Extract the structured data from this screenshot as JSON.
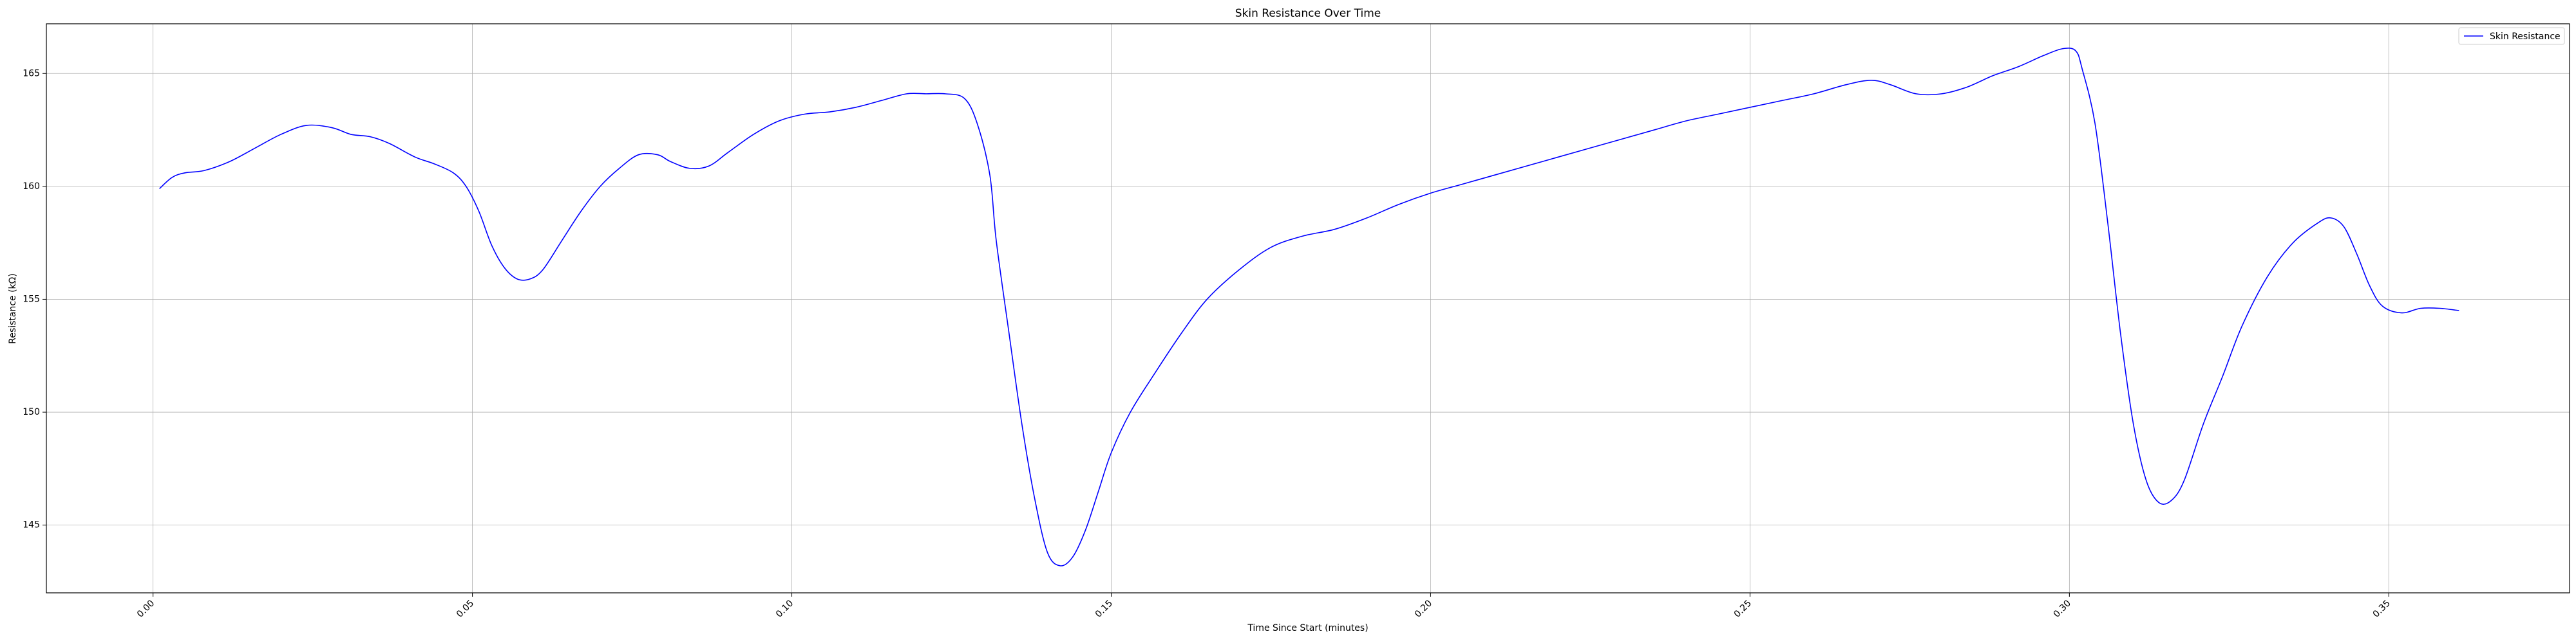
{
  "chart_data": {
    "type": "line",
    "title": "Skin Resistance Over Time",
    "xlabel": "Time Since Start (minutes)",
    "ylabel": "Resistance (kΩ)",
    "xlim": [
      -0.0167,
      0.3783
    ],
    "ylim": [
      142.0,
      167.2
    ],
    "grid": true,
    "legend_position": "top-right",
    "x_ticks": [
      {
        "value": 0.0,
        "label": "0.00"
      },
      {
        "value": 0.05,
        "label": "0.05"
      },
      {
        "value": 0.1,
        "label": "0.10"
      },
      {
        "value": 0.15,
        "label": "0.15"
      },
      {
        "value": 0.2,
        "label": "0.20"
      },
      {
        "value": 0.25,
        "label": "0.25"
      },
      {
        "value": 0.3,
        "label": "0.30"
      },
      {
        "value": 0.35,
        "label": "0.35"
      }
    ],
    "y_ticks": [
      {
        "value": 145,
        "label": "145"
      },
      {
        "value": 150,
        "label": "150"
      },
      {
        "value": 155,
        "label": "155"
      },
      {
        "value": 160,
        "label": "160"
      },
      {
        "value": 165,
        "label": "165"
      }
    ],
    "series": [
      {
        "name": "Skin Resistance",
        "color": "#0000ff",
        "x": [
          0.001,
          0.003,
          0.005,
          0.008,
          0.012,
          0.016,
          0.02,
          0.024,
          0.028,
          0.031,
          0.034,
          0.037,
          0.041,
          0.044,
          0.047,
          0.049,
          0.051,
          0.053,
          0.055,
          0.057,
          0.059,
          0.061,
          0.064,
          0.067,
          0.07,
          0.073,
          0.076,
          0.079,
          0.081,
          0.084,
          0.087,
          0.09,
          0.094,
          0.098,
          0.102,
          0.106,
          0.11,
          0.114,
          0.118,
          0.121,
          0.124,
          0.127,
          0.129,
          0.131,
          0.132,
          0.134,
          0.136,
          0.138,
          0.14,
          0.142,
          0.144,
          0.146,
          0.148,
          0.15,
          0.153,
          0.157,
          0.161,
          0.165,
          0.17,
          0.175,
          0.18,
          0.185,
          0.19,
          0.195,
          0.2,
          0.205,
          0.21,
          0.215,
          0.22,
          0.225,
          0.23,
          0.235,
          0.24,
          0.245,
          0.25,
          0.255,
          0.26,
          0.265,
          0.269,
          0.272,
          0.276,
          0.28,
          0.284,
          0.288,
          0.292,
          0.296,
          0.299,
          0.301,
          0.302,
          0.304,
          0.306,
          0.308,
          0.31,
          0.312,
          0.314,
          0.316,
          0.318,
          0.321,
          0.324,
          0.327,
          0.331,
          0.335,
          0.339,
          0.341,
          0.343,
          0.345,
          0.347,
          0.349,
          0.352,
          0.355,
          0.358,
          0.361
        ],
        "y": [
          159.9,
          160.4,
          160.6,
          160.7,
          161.1,
          161.7,
          162.3,
          162.7,
          162.6,
          162.3,
          162.2,
          161.9,
          161.3,
          161.0,
          160.6,
          160.0,
          158.9,
          157.4,
          156.4,
          155.9,
          155.9,
          156.3,
          157.6,
          158.9,
          160.0,
          160.8,
          161.4,
          161.4,
          161.1,
          160.8,
          160.9,
          161.5,
          162.3,
          162.9,
          163.2,
          163.3,
          163.5,
          163.8,
          164.1,
          164.1,
          164.1,
          163.9,
          162.8,
          160.5,
          157.6,
          153.5,
          149.5,
          146.2,
          143.8,
          143.2,
          143.6,
          144.8,
          146.5,
          148.2,
          150.0,
          151.8,
          153.5,
          155.0,
          156.3,
          157.3,
          157.8,
          158.1,
          158.6,
          159.2,
          159.7,
          160.1,
          160.5,
          160.9,
          161.3,
          161.7,
          162.1,
          162.5,
          162.9,
          163.2,
          163.5,
          163.8,
          164.1,
          164.5,
          164.7,
          164.5,
          164.1,
          164.1,
          164.4,
          164.9,
          165.3,
          165.8,
          166.1,
          166.0,
          165.2,
          162.8,
          158.4,
          153.5,
          149.5,
          147.0,
          146.0,
          146.1,
          147.0,
          149.5,
          151.6,
          153.8,
          156.0,
          157.5,
          158.4,
          158.6,
          158.2,
          157.0,
          155.6,
          154.7,
          154.4,
          154.6,
          154.6,
          154.5
        ]
      }
    ]
  }
}
